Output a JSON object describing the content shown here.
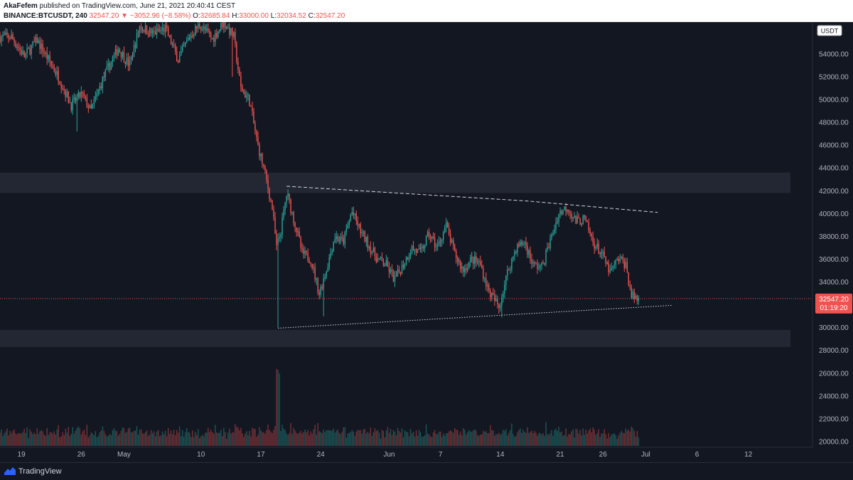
{
  "header": {
    "author": "AkaFefem",
    "published_text": "published on TradingView.com, June 21, 2021 20:40:41 CEST",
    "symbol": "BINANCE:BTCUSDT, 240",
    "last": "32547.20",
    "change": "▼ −3052.96 (−8.58%)",
    "o_label": "O:",
    "o_value": "32685.84",
    "h_label": "H:",
    "h_value": "33000.00",
    "l_label": "L:",
    "l_value": "32034.52",
    "c_label": "C:",
    "c_value": "32547.20"
  },
  "footer": {
    "brand": "TradingView"
  },
  "colors": {
    "background": "#131722",
    "up": "#26a69a",
    "down": "#ef5350",
    "neutral": "#8c8f98",
    "grid_text": "#b2b5be",
    "zone": "#2a2e39",
    "price_line": "#ef5350"
  },
  "chart_data": {
    "type": "candlestick",
    "currency_label": "USDT",
    "ylim": [
      19500,
      56800
    ],
    "y_ticks": [
      20000,
      22000,
      24000,
      26000,
      28000,
      30000,
      32000,
      34000,
      36000,
      38000,
      40000,
      42000,
      44000,
      46000,
      48000,
      50000,
      52000,
      54000
    ],
    "x_ticks": [
      "19",
      "26",
      "May",
      "10",
      "17",
      "24",
      "Jun",
      "7",
      "14",
      "21",
      "26",
      "Jul",
      "6",
      "12"
    ],
    "x_tick_days": [
      0,
      7,
      12,
      21,
      28,
      35,
      43,
      49,
      56,
      63,
      68,
      73,
      79,
      85
    ],
    "x_range_days": [
      -2.5,
      92.5
    ],
    "last_price": {
      "value": 32547.2,
      "label": "32547.20",
      "countdown": "01:19:20"
    },
    "zones": [
      {
        "from": 41800,
        "to": 43600
      },
      {
        "from": 28300,
        "to": 29800
      }
    ],
    "trendlines": [
      {
        "name": "upper-dashed",
        "style": "dashed",
        "points": [
          [
            31.0,
            42400
          ],
          [
            59.2,
            41100
          ],
          [
            74.4,
            40100
          ]
        ]
      },
      {
        "name": "lower-dotted",
        "style": "dotted",
        "points": [
          [
            30.0,
            29950
          ],
          [
            76.0,
            31950
          ]
        ]
      }
    ],
    "anchors": [
      [
        -1.0,
        55500
      ],
      [
        0.5,
        53800
      ],
      [
        2.0,
        55200
      ],
      [
        4.5,
        52000
      ],
      [
        6.0,
        49500
      ],
      [
        7.2,
        50500
      ],
      [
        8.3,
        49000
      ],
      [
        9.8,
        52000
      ],
      [
        11.5,
        54500
      ],
      [
        12.8,
        53000
      ],
      [
        14.0,
        56400
      ],
      [
        15.5,
        55800
      ],
      [
        17.0,
        56200
      ],
      [
        18.5,
        53500
      ],
      [
        19.8,
        55500
      ],
      [
        21.0,
        56600
      ],
      [
        22.5,
        55300
      ],
      [
        23.8,
        56800
      ],
      [
        25.0,
        55500
      ],
      [
        25.8,
        51000
      ],
      [
        26.8,
        50000
      ],
      [
        27.8,
        46000
      ],
      [
        28.5,
        44000
      ],
      [
        29.5,
        40500
      ],
      [
        30.0,
        37000
      ],
      [
        30.5,
        38500
      ],
      [
        31.2,
        41800
      ],
      [
        32.2,
        39000
      ],
      [
        33.0,
        36500
      ],
      [
        34.0,
        36000
      ],
      [
        35.0,
        33000
      ],
      [
        35.8,
        35000
      ],
      [
        36.8,
        38000
      ],
      [
        37.8,
        37500
      ],
      [
        38.8,
        40200
      ],
      [
        39.8,
        38500
      ],
      [
        40.8,
        37200
      ],
      [
        41.8,
        36000
      ],
      [
        42.8,
        35500
      ],
      [
        43.8,
        34200
      ],
      [
        44.8,
        35500
      ],
      [
        45.8,
        37000
      ],
      [
        46.8,
        36500
      ],
      [
        47.8,
        38200
      ],
      [
        48.8,
        37000
      ],
      [
        49.8,
        39000
      ],
      [
        50.8,
        36500
      ],
      [
        51.8,
        35000
      ],
      [
        52.8,
        36000
      ],
      [
        53.8,
        35600
      ],
      [
        54.8,
        33200
      ],
      [
        55.3,
        32600
      ],
      [
        56.0,
        31800
      ],
      [
        57.0,
        34800
      ],
      [
        58.0,
        37000
      ],
      [
        59.0,
        37500
      ],
      [
        60.0,
        35500
      ],
      [
        61.0,
        35300
      ],
      [
        62.0,
        37600
      ],
      [
        63.0,
        40000
      ],
      [
        64.0,
        40600
      ],
      [
        65.0,
        39300
      ],
      [
        66.0,
        39500
      ],
      [
        67.0,
        37500
      ],
      [
        68.0,
        36500
      ],
      [
        69.0,
        34800
      ],
      [
        70.0,
        36000
      ],
      [
        70.8,
        35600
      ],
      [
        71.5,
        32800
      ],
      [
        72.2,
        32547
      ]
    ],
    "wick_spikes": [
      [
        30.0,
        30000
      ],
      [
        35.4,
        31000
      ],
      [
        56.1,
        30900
      ],
      [
        24.7,
        52000
      ],
      [
        6.5,
        47200
      ]
    ],
    "x_start_day": -2.5,
    "x_end_day": 72.3,
    "bar_hours": 4
  }
}
